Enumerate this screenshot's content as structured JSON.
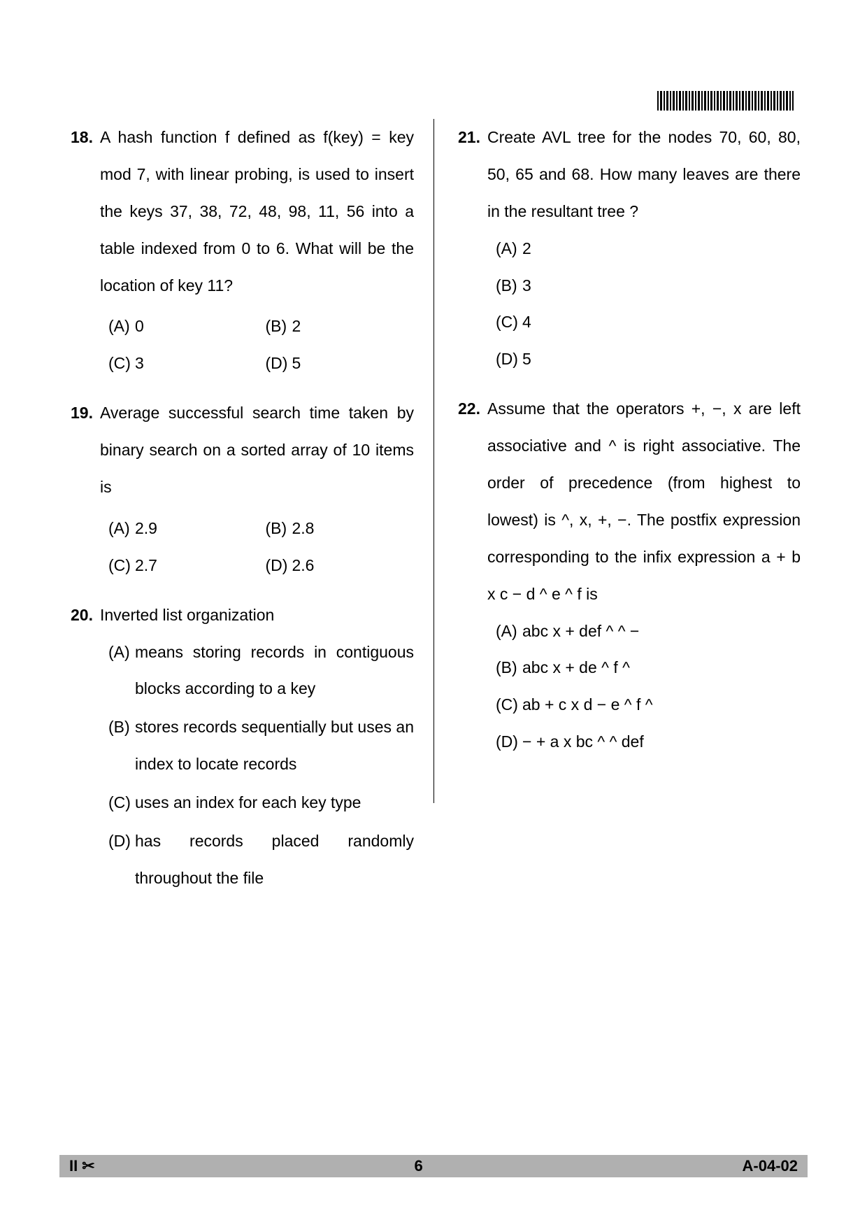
{
  "colors": {
    "background": "#ffffff",
    "text": "#000000",
    "footer_bg": "#b0b0b0",
    "divider": "#000000"
  },
  "typography": {
    "body_fontsize": 23,
    "line_height": 2.3,
    "font_family": "Arial"
  },
  "barcode_text": "|||||||||||||||||||||||||",
  "questions": [
    {
      "num": "18.",
      "text": "A hash function f defined as f(key) = key mod 7, with linear probing, is used to insert the keys 37, 38, 72, 48, 98, 11, 56 into a table indexed from 0 to 6.  What will be the location of key 11?",
      "layout": "grid",
      "options": [
        {
          "label": "(A)",
          "text": "0"
        },
        {
          "label": "(B)",
          "text": "2"
        },
        {
          "label": "(C)",
          "text": "3"
        },
        {
          "label": "(D)",
          "text": "5"
        }
      ]
    },
    {
      "num": "19.",
      "text": "Average successful search time taken by binary search on a sorted array of 10 items is",
      "layout": "grid",
      "options": [
        {
          "label": "(A)",
          "text": "2.9"
        },
        {
          "label": "(B)",
          "text": "2.8"
        },
        {
          "label": "(C)",
          "text": "2.7"
        },
        {
          "label": "(D)",
          "text": "2.6"
        }
      ]
    },
    {
      "num": "20.",
      "text": "Inverted list organization",
      "layout": "stack",
      "options": [
        {
          "label": "(A)",
          "text": "means storing records in contiguous blocks according to a key"
        },
        {
          "label": "(B)",
          "text": "stores records sequentially but uses an index to locate records"
        },
        {
          "label": "(C)",
          "text": "uses an index for each key type"
        },
        {
          "label": "(D)",
          "text": "has records placed randomly throughout the file"
        }
      ]
    },
    {
      "num": "21.",
      "text": "Create AVL tree for the nodes 70, 60, 80, 50, 65 and 68.  How many leaves are there in the resultant tree ?",
      "layout": "vert",
      "options": [
        {
          "label": "(A)",
          "text": "2"
        },
        {
          "label": "(B)",
          "text": "3"
        },
        {
          "label": "(C)",
          "text": "4"
        },
        {
          "label": "(D)",
          "text": "5"
        }
      ]
    },
    {
      "num": "22.",
      "text": "Assume that the operators +, −, x are left associative and ^ is right associative.  The order of precedence (from highest to lowest) is ^, x, +, −.  The postfix expression corresponding to the infix expression a + b x c − d ^ e ^ f is",
      "layout": "vert",
      "options": [
        {
          "label": "(A)",
          "text": "abc x + def ^ ^ −"
        },
        {
          "label": "(B)",
          "text": "abc x + de ^ f ^"
        },
        {
          "label": "(C)",
          "text": "ab + c x d − e ^ f ^"
        },
        {
          "label": "(D)",
          "text": "− + a x bc ^ ^ def"
        }
      ]
    }
  ],
  "footer": {
    "left_roman": "II",
    "scissors": "✂",
    "page_num": "6",
    "code": "A-04-02"
  }
}
